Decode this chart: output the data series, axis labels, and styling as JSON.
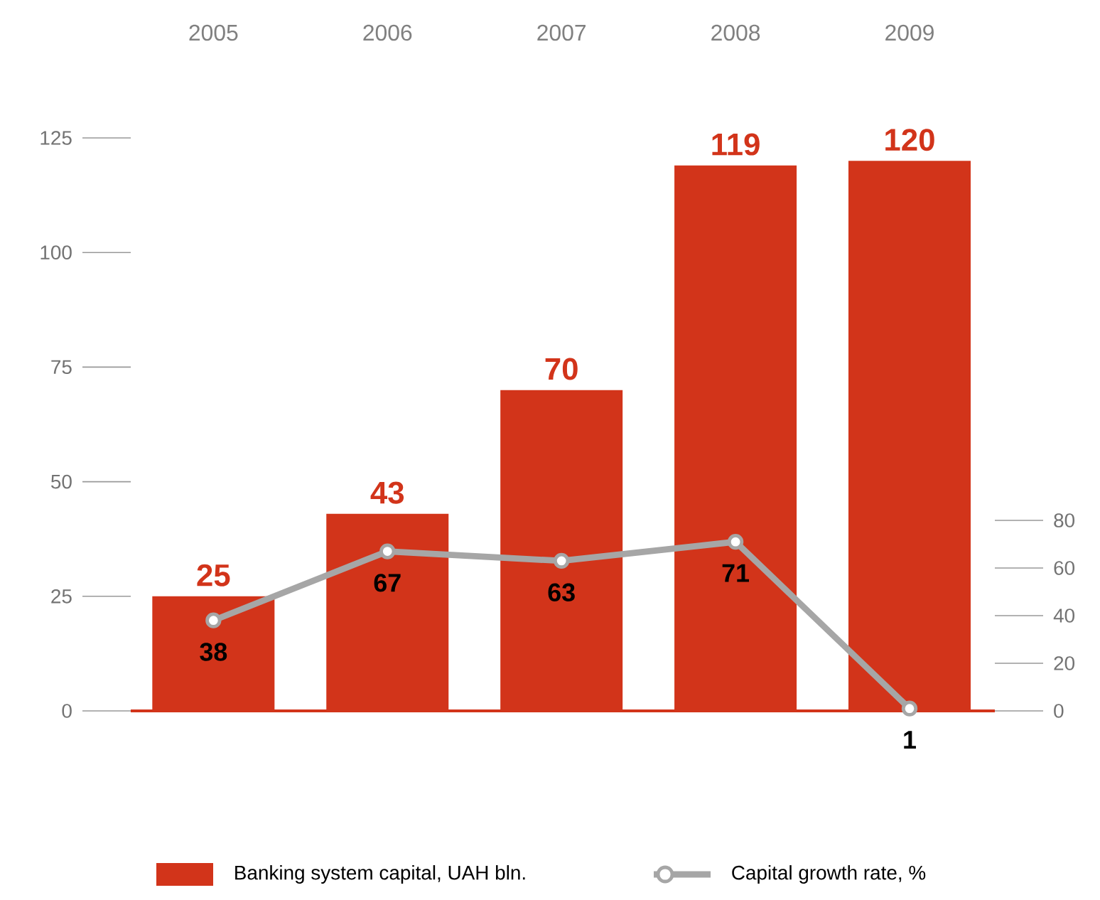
{
  "chart_data": {
    "type": "bar",
    "categories": [
      "2005",
      "2006",
      "2007",
      "2008",
      "2009"
    ],
    "series": [
      {
        "name": "Banking system capital, UAH bln.",
        "color": "#d2341a",
        "values": [
          25,
          43,
          70,
          119,
          120
        ]
      },
      {
        "name": "Capital growth rate, %",
        "type": "line",
        "axis": "y2",
        "marker": "circle",
        "color": "#a6a6a6",
        "values": [
          38,
          67,
          63,
          71,
          1
        ]
      }
    ],
    "ylim": [
      0,
      125
    ],
    "yticks": [
      0,
      25,
      50,
      75,
      100,
      125
    ],
    "y2lim": [
      0,
      80
    ],
    "y2ticks": [
      0,
      20,
      40,
      60,
      80
    ],
    "data_labels": true,
    "legend": "bottom"
  }
}
